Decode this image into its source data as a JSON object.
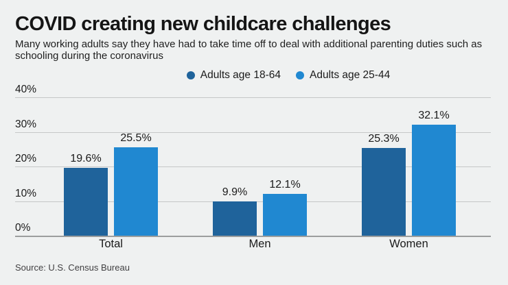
{
  "header": {
    "title": "COVID creating new childcare challenges",
    "subtitle": "Many working adults say they have had to take time off to deal with additional parenting duties such as schooling during the coronavirus"
  },
  "chart_data": {
    "type": "bar",
    "title": "COVID creating new childcare challenges",
    "subtitle": "Many working adults say they have had to take time off to deal with additional parenting duties such as schooling during the coronavirus",
    "categories": [
      "Total",
      "Men",
      "Women"
    ],
    "series": [
      {
        "name": "Adults age 18-64",
        "color": "#1f639b",
        "values": [
          19.6,
          9.9,
          25.3
        ],
        "labels": [
          "19.6%",
          "9.9%",
          "25.3%"
        ]
      },
      {
        "name": "Adults age 25-44",
        "color": "#2088d1",
        "values": [
          25.5,
          12.1,
          32.1
        ],
        "labels": [
          "25.5%",
          "12.1%",
          "32.1%"
        ]
      }
    ],
    "yticks": [
      {
        "value": 0,
        "label": "0%"
      },
      {
        "value": 10,
        "label": "10%"
      },
      {
        "value": 20,
        "label": "20%"
      },
      {
        "value": 30,
        "label": "30%"
      },
      {
        "value": 40,
        "label": "40%"
      }
    ],
    "ylim": [
      0,
      40
    ],
    "grid": true,
    "legend_position": "top-center",
    "value_suffix": "%"
  },
  "footer": {
    "source": "Source: U.S. Census Bureau"
  },
  "colors": {
    "background": "#eff1f1",
    "gridline": "#c5c7c7",
    "baseline": "#9b9d9d",
    "text": "#1a1a1a"
  }
}
